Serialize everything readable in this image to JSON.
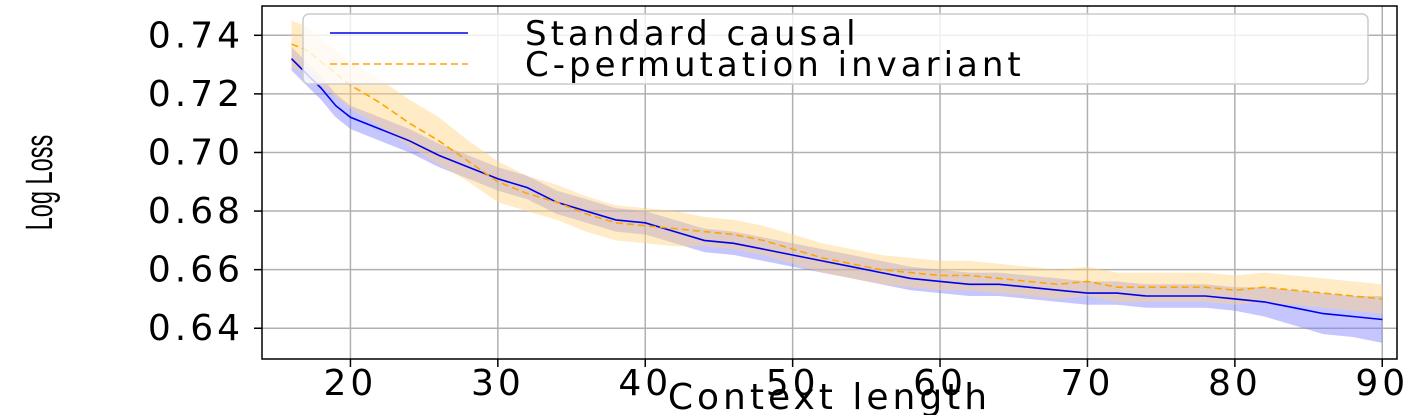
{
  "chart_data": {
    "type": "line",
    "xlabel": "Context length",
    "ylabel": "Log Loss",
    "xlim": [
      14,
      91
    ],
    "ylim": [
      0.6295,
      0.75
    ],
    "xticks": [
      20,
      30,
      40,
      50,
      60,
      70,
      80,
      90
    ],
    "yticks": [
      0.64,
      0.66,
      0.68,
      0.7,
      0.72,
      0.74
    ],
    "ytick_labels": [
      "0.64",
      "0.66",
      "0.68",
      "0.70",
      "0.72",
      "0.74"
    ],
    "grid": true,
    "legend_position": "top-right",
    "series": [
      {
        "name": "Standard causal",
        "color": "#0000ee",
        "style": "solid",
        "band_color": "#8080ff",
        "points": [
          [
            16,
            0.732
          ],
          [
            17,
            0.727
          ],
          [
            18,
            0.722
          ],
          [
            19,
            0.716
          ],
          [
            20,
            0.712
          ],
          [
            22,
            0.708
          ],
          [
            24,
            0.704
          ],
          [
            26,
            0.699
          ],
          [
            28,
            0.695
          ],
          [
            30,
            0.691
          ],
          [
            32,
            0.688
          ],
          [
            34,
            0.683
          ],
          [
            36,
            0.68
          ],
          [
            38,
            0.677
          ],
          [
            40,
            0.676
          ],
          [
            42,
            0.673
          ],
          [
            44,
            0.67
          ],
          [
            46,
            0.669
          ],
          [
            48,
            0.667
          ],
          [
            50,
            0.665
          ],
          [
            52,
            0.663
          ],
          [
            54,
            0.661
          ],
          [
            56,
            0.659
          ],
          [
            58,
            0.657
          ],
          [
            60,
            0.656
          ],
          [
            62,
            0.655
          ],
          [
            64,
            0.655
          ],
          [
            66,
            0.654
          ],
          [
            68,
            0.653
          ],
          [
            70,
            0.652
          ],
          [
            72,
            0.652
          ],
          [
            74,
            0.651
          ],
          [
            76,
            0.651
          ],
          [
            78,
            0.651
          ],
          [
            80,
            0.65
          ],
          [
            82,
            0.649
          ],
          [
            84,
            0.647
          ],
          [
            86,
            0.645
          ],
          [
            88,
            0.644
          ],
          [
            90,
            0.643
          ]
        ],
        "band_half_width": [
          0.004,
          0.004,
          0.004,
          0.004,
          0.004,
          0.004,
          0.004,
          0.004,
          0.004,
          0.004,
          0.004,
          0.004,
          0.004,
          0.004,
          0.004,
          0.004,
          0.004,
          0.004,
          0.004,
          0.004,
          0.004,
          0.004,
          0.004,
          0.004,
          0.004,
          0.004,
          0.004,
          0.004,
          0.004,
          0.004,
          0.004,
          0.004,
          0.004,
          0.004,
          0.004,
          0.005,
          0.006,
          0.007,
          0.007,
          0.008
        ]
      },
      {
        "name": "C-permutation invariant",
        "color": "#ffa500",
        "style": "dashed",
        "band_color": "#ffd27f",
        "points": [
          [
            16,
            0.737
          ],
          [
            17,
            0.735
          ],
          [
            18,
            0.731
          ],
          [
            19,
            0.727
          ],
          [
            20,
            0.723
          ],
          [
            22,
            0.717
          ],
          [
            24,
            0.71
          ],
          [
            26,
            0.704
          ],
          [
            28,
            0.697
          ],
          [
            30,
            0.69
          ],
          [
            32,
            0.686
          ],
          [
            34,
            0.683
          ],
          [
            36,
            0.679
          ],
          [
            38,
            0.676
          ],
          [
            40,
            0.675
          ],
          [
            42,
            0.674
          ],
          [
            44,
            0.673
          ],
          [
            46,
            0.672
          ],
          [
            48,
            0.67
          ],
          [
            50,
            0.667
          ],
          [
            52,
            0.664
          ],
          [
            54,
            0.662
          ],
          [
            56,
            0.66
          ],
          [
            58,
            0.659
          ],
          [
            60,
            0.658
          ],
          [
            62,
            0.658
          ],
          [
            64,
            0.657
          ],
          [
            66,
            0.656
          ],
          [
            68,
            0.655
          ],
          [
            70,
            0.656
          ],
          [
            72,
            0.654
          ],
          [
            74,
            0.654
          ],
          [
            76,
            0.654
          ],
          [
            78,
            0.654
          ],
          [
            80,
            0.653
          ],
          [
            82,
            0.654
          ],
          [
            84,
            0.653
          ],
          [
            86,
            0.652
          ],
          [
            88,
            0.651
          ],
          [
            90,
            0.65
          ]
        ],
        "band_half_width": [
          0.008,
          0.008,
          0.008,
          0.008,
          0.008,
          0.008,
          0.008,
          0.008,
          0.007,
          0.007,
          0.006,
          0.006,
          0.006,
          0.006,
          0.006,
          0.006,
          0.005,
          0.005,
          0.005,
          0.005,
          0.005,
          0.005,
          0.005,
          0.005,
          0.005,
          0.005,
          0.005,
          0.005,
          0.005,
          0.005,
          0.005,
          0.005,
          0.005,
          0.005,
          0.005,
          0.005,
          0.005,
          0.005,
          0.005,
          0.005
        ]
      }
    ]
  }
}
